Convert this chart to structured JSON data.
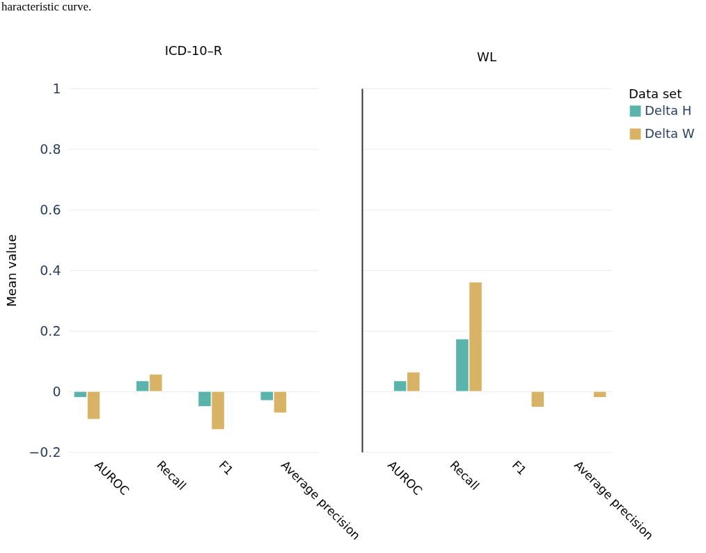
{
  "chart_data": [
    {
      "type": "bar",
      "title": "ICD-10–R",
      "ylabel": "Mean value",
      "grid": "y",
      "categories": [
        "AUROC",
        "Recall",
        "F1",
        "Average precision"
      ],
      "ylim": [
        -0.2,
        1
      ],
      "yticks": [
        -0.2,
        0,
        0.2,
        0.4,
        0.6,
        0.8,
        1
      ],
      "annotations": [
        "haracteristic curve."
      ],
      "series": [
        {
          "color": "#5ab4ac",
          "values": [
            -0.02,
            0.035,
            -0.05,
            -0.03
          ]
        },
        {
          "color": "#d8b365",
          "values": [
            -0.092,
            0.057,
            -0.126,
            -0.071
          ]
        }
      ]
    },
    {
      "type": "bar",
      "title": "WL",
      "legend_title": "Data set",
      "legend": "top right",
      "grid": "y",
      "tick_labels": "x",
      "categories": [
        "AUROC",
        "Recall",
        "F1",
        "Average precision"
      ],
      "ylim": [
        -0.2,
        1
      ],
      "yticks": [
        -0.2,
        0,
        0.2,
        0.4,
        0.6,
        0.8,
        1
      ],
      "series": [
        {
          "name": "Delta  H",
          "color": "#5ab4ac",
          "values": [
            0.035,
            0.173,
            null,
            null
          ]
        },
        {
          "name": "Delta  W",
          "color": "#d8b365",
          "values": [
            0.064,
            0.361,
            -0.052,
            -0.02
          ]
        }
      ]
    }
  ]
}
